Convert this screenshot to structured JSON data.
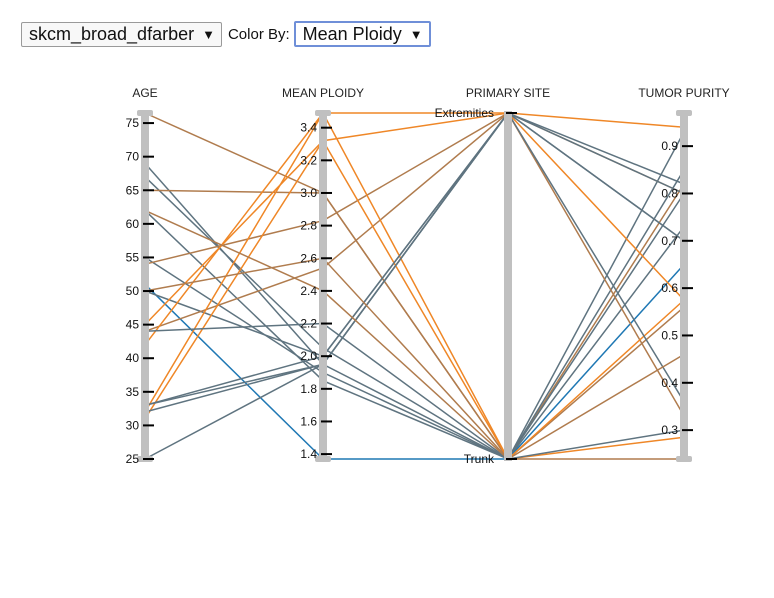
{
  "controls": {
    "dataset_select": "skcm_broad_dfarber",
    "color_by_label": "Color By:",
    "color_by_select": "Mean Ploidy"
  },
  "colors": {
    "axis": "#c0c0c0",
    "low": "#1f78b4",
    "mid": "#5f7480",
    "tan": "#b07c4e",
    "high": "#ef8727"
  },
  "chart_data": {
    "type": "parallel-coordinates",
    "axes": [
      {
        "key": "age",
        "title": "AGE",
        "kind": "numeric",
        "range": [
          25,
          76.5
        ],
        "ticks": [
          25,
          30,
          35,
          40,
          45,
          50,
          55,
          60,
          65,
          70,
          75
        ]
      },
      {
        "key": "ploidy",
        "title": "MEAN PLOIDY",
        "kind": "numeric",
        "range": [
          1.37,
          3.49
        ],
        "ticks": [
          1.4,
          1.6,
          1.8,
          2.0,
          2.2,
          2.4,
          2.6,
          2.8,
          3.0,
          3.2,
          3.4
        ]
      },
      {
        "key": "site",
        "title": "PRIMARY SITE",
        "kind": "categorical",
        "categories": [
          "Extremities",
          "Trunk"
        ]
      },
      {
        "key": "purity",
        "title": "TUMOR PURITY",
        "kind": "numeric",
        "range": [
          0.239,
          0.97
        ],
        "ticks": [
          0.3,
          0.4,
          0.5,
          0.6,
          0.7,
          0.8,
          0.9
        ]
      }
    ],
    "records": [
      {
        "age": 76.5,
        "ploidy": 3.0,
        "site": "Trunk",
        "purity": 0.82
      },
      {
        "age": 69,
        "ploidy": 1.95,
        "site": "Trunk",
        "purity": 0.93
      },
      {
        "age": 67,
        "ploidy": 2.05,
        "site": "Trunk",
        "purity": 0.85
      },
      {
        "age": 65,
        "ploidy": 3.0,
        "site": "Trunk",
        "purity": 0.56
      },
      {
        "age": 62,
        "ploidy": 1.85,
        "site": "Trunk",
        "purity": 0.8
      },
      {
        "age": 55,
        "ploidy": 1.9,
        "site": "Trunk",
        "purity": 0.73
      },
      {
        "age": 54,
        "ploidy": 2.83,
        "site": "Extremities",
        "purity": 0.8
      },
      {
        "age": 51,
        "ploidy": 1.37,
        "site": "Trunk",
        "purity": 0.65
      },
      {
        "age": 50,
        "ploidy": 2.0,
        "site": "Extremities",
        "purity": 0.7
      },
      {
        "age": 44,
        "ploidy": 2.54,
        "site": "Extremities",
        "purity": 0.33
      },
      {
        "age": 42,
        "ploidy": 3.49,
        "site": "Extremities",
        "purity": 0.94
      },
      {
        "age": 45,
        "ploidy": 3.32,
        "site": "Trunk",
        "purity": 0.575
      },
      {
        "age": 31,
        "ploidy": 3.32,
        "site": "Extremities",
        "purity": 0.575
      },
      {
        "age": 32,
        "ploidy": 3.49,
        "site": "Trunk",
        "purity": 0.285
      },
      {
        "age": 33,
        "ploidy": 2.0,
        "site": "Extremities",
        "purity": 0.36
      },
      {
        "age": 32,
        "ploidy": 1.95,
        "site": "Extremities",
        "purity": 0.7
      },
      {
        "age": 33,
        "ploidy": 1.95,
        "site": "Extremities",
        "purity": 0.8
      },
      {
        "age": 25,
        "ploidy": 1.95,
        "site": "Extremities",
        "purity": 0.82
      },
      {
        "age": 44,
        "ploidy": 2.2,
        "site": "Trunk",
        "purity": 0.3
      },
      {
        "age": 62,
        "ploidy": 2.4,
        "site": "Trunk",
        "purity": 0.46
      },
      {
        "age": 50,
        "ploidy": 2.6,
        "site": "Trunk",
        "purity": 0.239
      }
    ]
  }
}
